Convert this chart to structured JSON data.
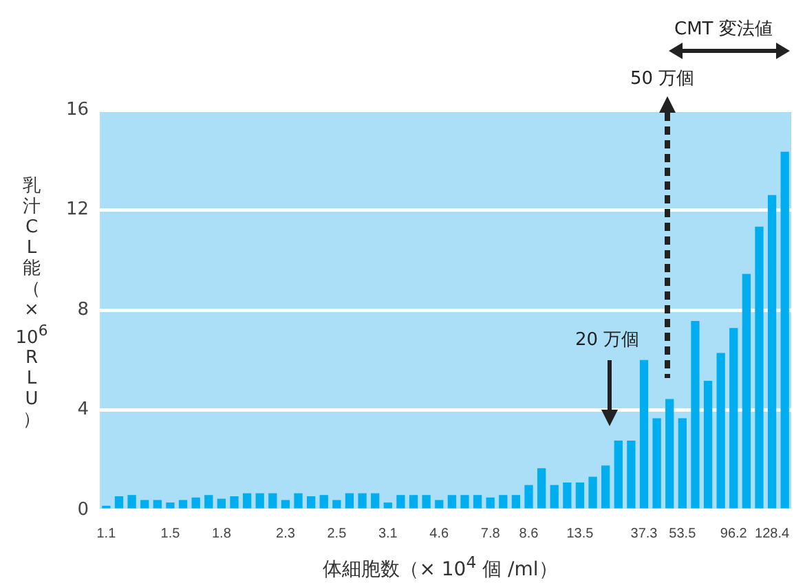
{
  "chart_data": {
    "type": "bar",
    "xlabel": "体細胞数（× 10$^{4}$ 個 /ml）",
    "ylabel": "乳汁CL能（×10$^{6}$RLU）",
    "categories": [
      "1.1",
      null,
      null,
      null,
      null,
      "1.5",
      null,
      null,
      null,
      "1.8",
      null,
      null,
      null,
      null,
      "2.3",
      null,
      null,
      null,
      "2.5",
      null,
      null,
      null,
      "3.1",
      null,
      null,
      null,
      "4.6",
      null,
      null,
      null,
      "7.8",
      null,
      null,
      "8.6",
      null,
      null,
      null,
      "13.5",
      null,
      null,
      null,
      null,
      "37.3",
      null,
      null,
      "53.5",
      null,
      null,
      null,
      "96.2",
      null,
      null,
      "128.4",
      null
    ],
    "values": [
      0.17,
      0.55,
      0.6,
      0.4,
      0.4,
      0.3,
      0.4,
      0.5,
      0.6,
      0.45,
      0.55,
      0.67,
      0.67,
      0.67,
      0.4,
      0.67,
      0.55,
      0.6,
      0.4,
      0.67,
      0.67,
      0.67,
      0.3,
      0.6,
      0.6,
      0.6,
      0.4,
      0.6,
      0.6,
      0.6,
      0.5,
      0.6,
      0.6,
      1.0,
      1.67,
      1.0,
      1.1,
      1.1,
      1.33,
      1.78,
      2.78,
      2.78,
      6.0,
      3.67,
      4.44,
      3.67,
      7.56,
      5.17,
      6.28,
      7.28,
      9.44,
      11.33,
      12.6,
      14.33
    ],
    "color": "#00aeef",
    "ylim": [
      0,
      16
    ],
    "yticks": [
      0,
      4,
      8,
      12,
      16
    ],
    "grid": "y",
    "annotations": [
      "20 万個",
      "50 万個",
      "CMT 変法値"
    ]
  }
}
